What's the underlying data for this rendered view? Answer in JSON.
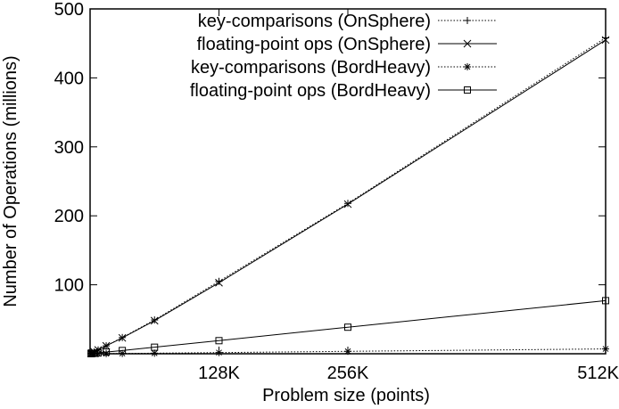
{
  "chart_data": {
    "type": "line",
    "xlabel": "Problem size (points)",
    "ylabel": "Number of Operations (millions)",
    "xlim": [
      0,
      524288
    ],
    "ylim": [
      0,
      500
    ],
    "x_ticks": [
      {
        "value": 131072,
        "label": "128K"
      },
      {
        "value": 262144,
        "label": "256K"
      },
      {
        "value": 524288,
        "label": "512K"
      }
    ],
    "y_ticks": [
      {
        "value": 0,
        "label": ""
      },
      {
        "value": 100,
        "label": "100"
      },
      {
        "value": 200,
        "label": "200"
      },
      {
        "value": 300,
        "label": "300"
      },
      {
        "value": 400,
        "label": "400"
      },
      {
        "value": 500,
        "label": "500"
      }
    ],
    "grid": false,
    "legend_position": "top-right",
    "series": [
      {
        "name": "key-comparisons (OnSphere)",
        "line": "dotted",
        "marker": "plus",
        "x": [
          1024,
          2048,
          4096,
          8192,
          16384,
          32768,
          65536,
          131072,
          262144,
          524288
        ],
        "y": [
          0.5,
          1.2,
          2.7,
          5.5,
          11.5,
          23.5,
          49,
          105,
          218,
          458
        ]
      },
      {
        "name": "floating-point ops (OnSphere)",
        "line": "solid",
        "marker": "cross",
        "x": [
          1024,
          2048,
          4096,
          8192,
          16384,
          32768,
          65536,
          131072,
          262144,
          524288
        ],
        "y": [
          0.5,
          1.2,
          2.7,
          5.5,
          11.5,
          23,
          48,
          103,
          217,
          455
        ]
      },
      {
        "name": "key-comparisons (BordHeavy)",
        "line": "dotted",
        "marker": "star",
        "x": [
          1024,
          2048,
          4096,
          8192,
          16384,
          32768,
          65536,
          131072,
          262144,
          524288
        ],
        "y": [
          0.01,
          0.02,
          0.05,
          0.1,
          0.2,
          0.4,
          0.8,
          1.7,
          3.5,
          7
        ]
      },
      {
        "name": "floating-point ops (BordHeavy)",
        "line": "solid",
        "marker": "square",
        "x": [
          1024,
          2048,
          4096,
          8192,
          16384,
          32768,
          65536,
          131072,
          262144,
          524288
        ],
        "y": [
          0.15,
          0.3,
          0.6,
          1.2,
          2.4,
          4.7,
          9.5,
          19,
          38.5,
          77
        ]
      }
    ]
  }
}
